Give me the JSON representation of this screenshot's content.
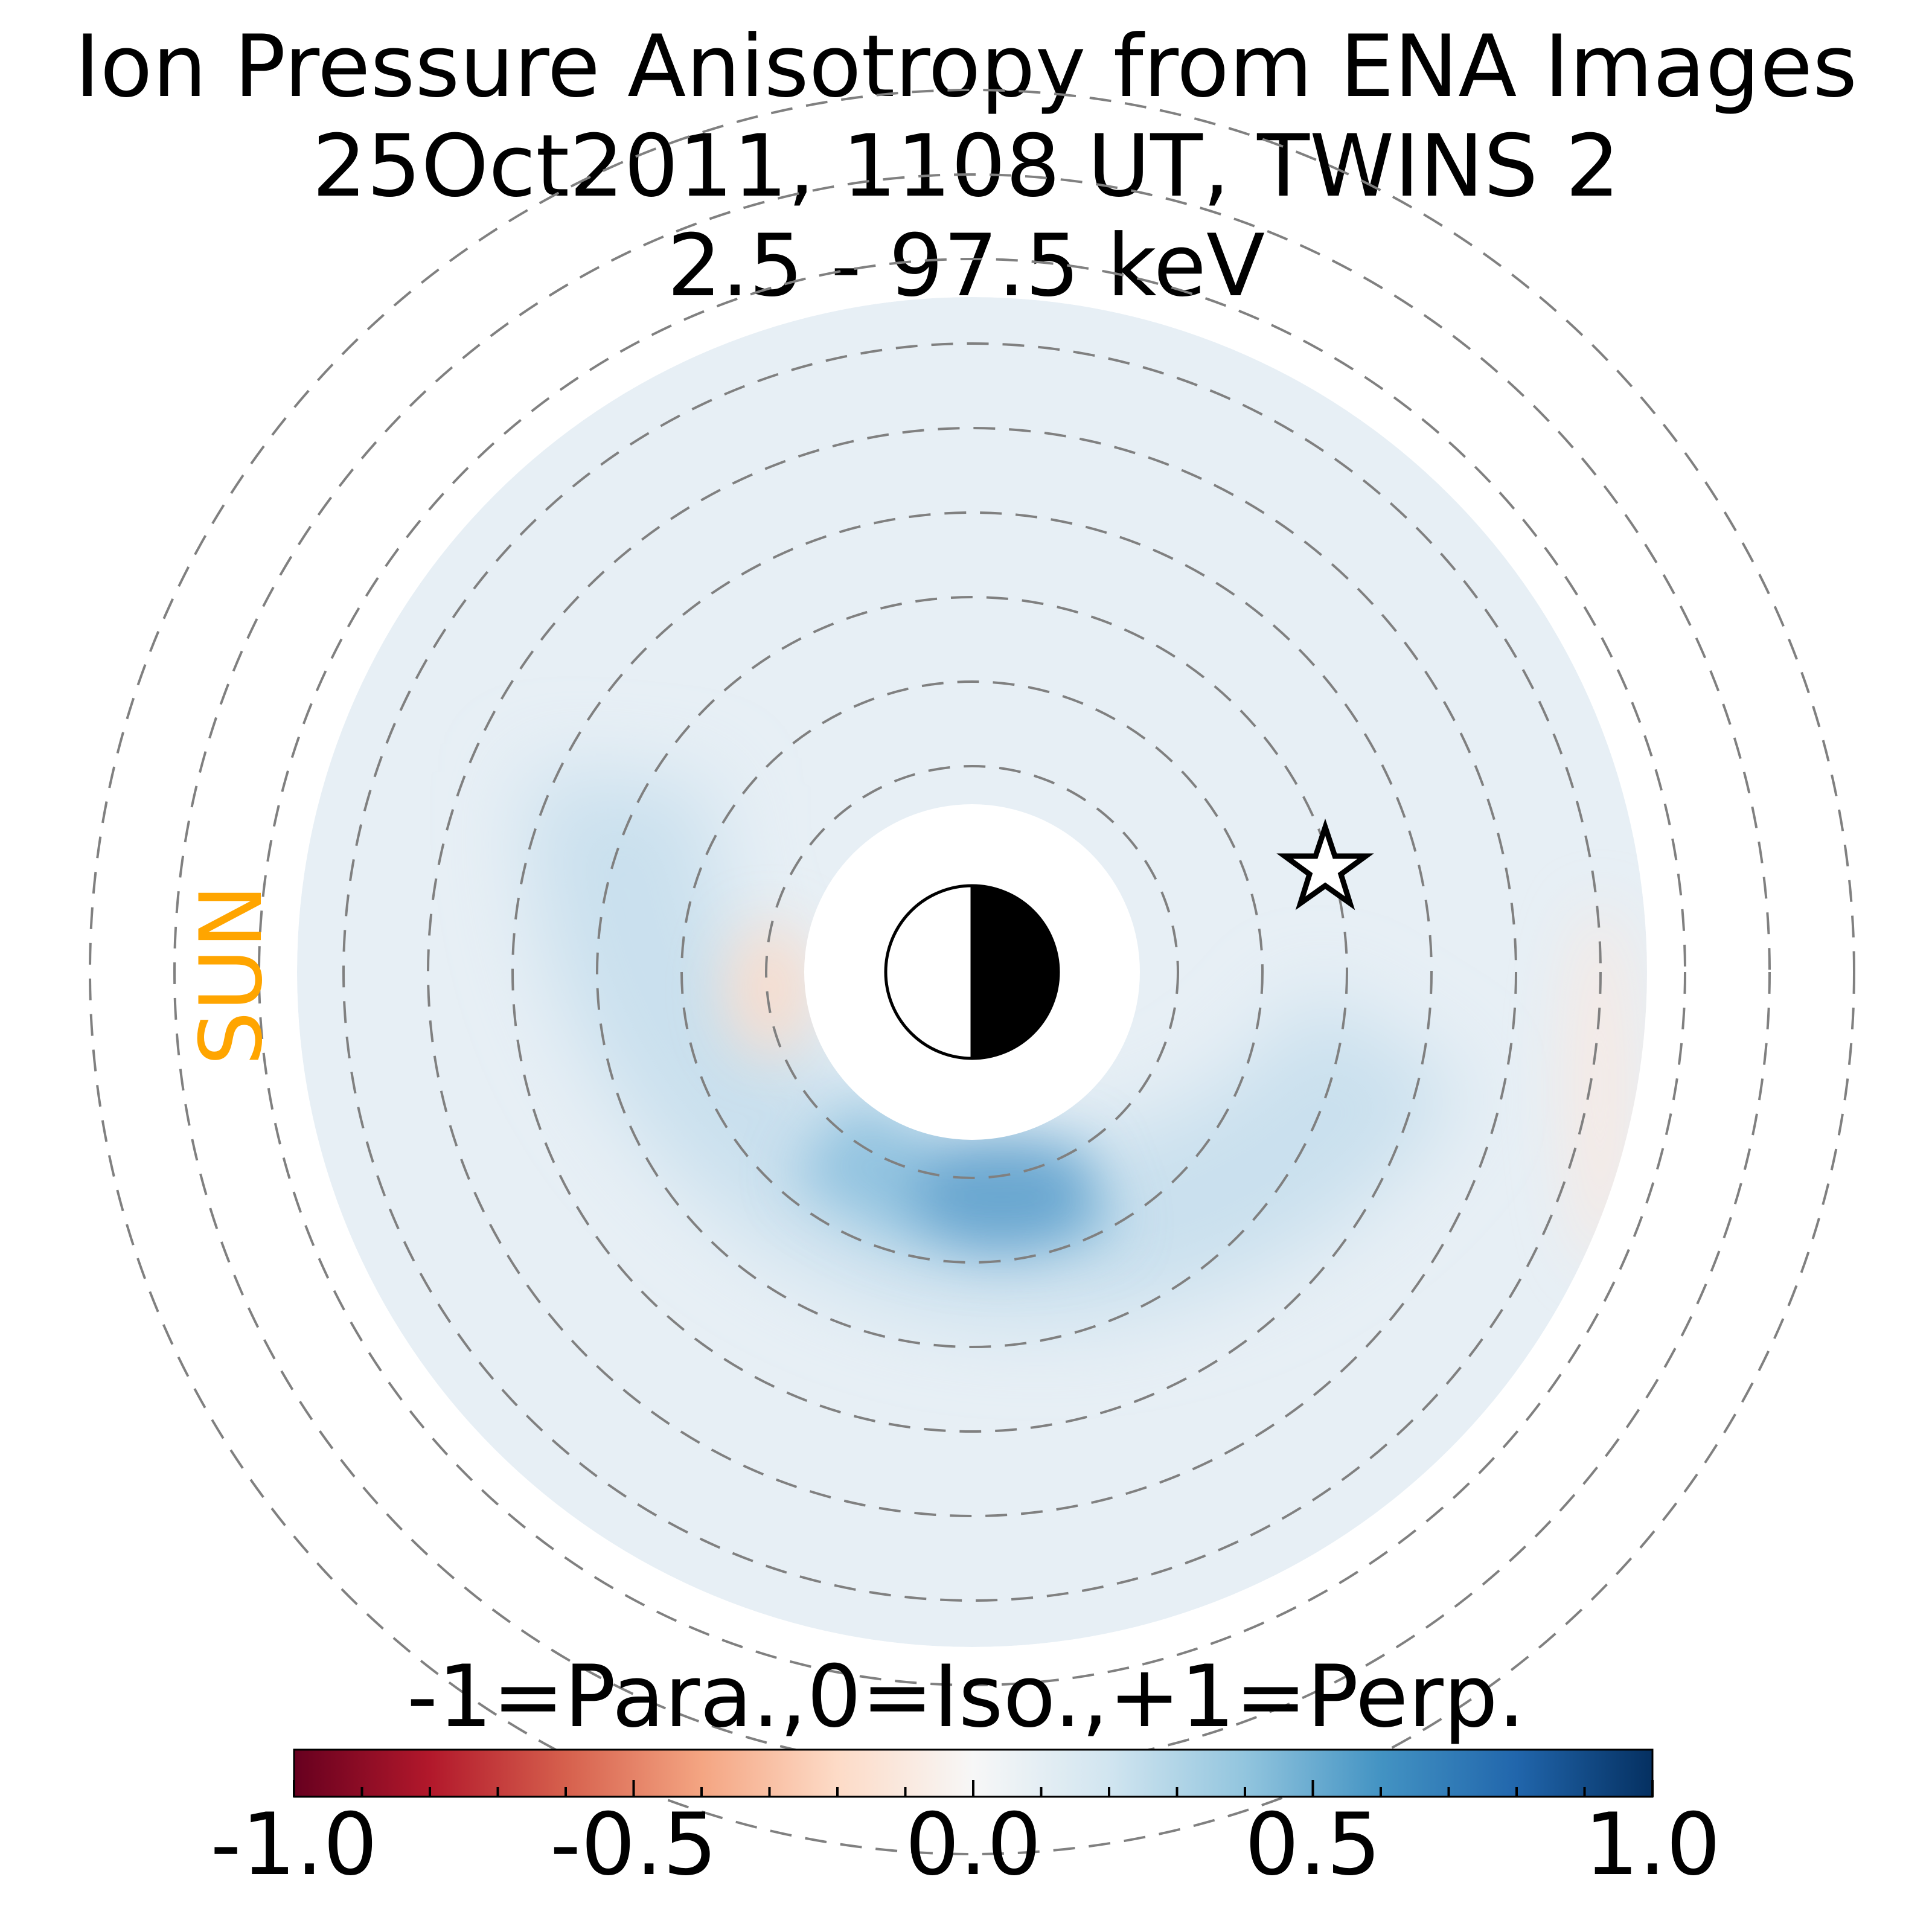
{
  "title": {
    "line1": "Ion Pressure Anisotropy from  ENA Images",
    "line2": "25Oct2011, 1108 UT,  TWINS 2",
    "line3": "2.5 - 97.5 keV"
  },
  "sun_label": "SUN",
  "sun_color": "#FFA500",
  "chart_data": {
    "type": "heatmap",
    "projection": "polar",
    "value_range": [
      -1.0,
      1.0
    ],
    "colormap": "RdBu",
    "colorbar": {
      "label": "-1=Para.,0=Iso.,+1=Perp.",
      "ticks": [
        -1.0,
        -0.5,
        0.0,
        0.5,
        1.0
      ],
      "tick_labels": [
        "-1.0",
        "-0.5",
        "0.0",
        "0.5",
        "1.0"
      ],
      "placement": "bottom"
    },
    "rings": {
      "count": 9,
      "style": "dashed",
      "color": "#808080"
    },
    "features": [
      {
        "description": "enhanced perpendicular anisotropy arc",
        "peak_value": 0.45
      },
      {
        "description": "mild perpendicular band",
        "value": 0.15
      },
      {
        "description": "slight parallel patch near inner edge sunward",
        "value": -0.1
      },
      {
        "description": "slight parallel patch at outer edge antisunward",
        "value": -0.05
      }
    ],
    "markers": [
      "earth-day-night-symbol",
      "spacecraft-star"
    ]
  }
}
